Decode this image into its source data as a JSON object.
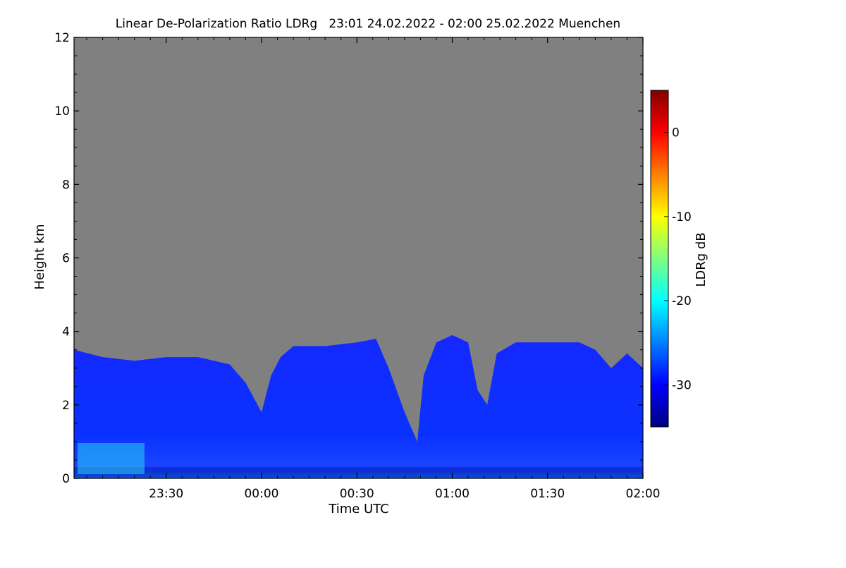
{
  "chart_data": {
    "type": "heatmap",
    "title": "Linear De-Polarization Ratio LDRg   23:01 24.02.2022 - 02:00 25.02.2022 Muenchen",
    "xlabel": "Time UTC",
    "ylabel": "Height km",
    "x_range": [
      "23:01",
      "02:00"
    ],
    "x_ticks": [
      "23:30",
      "00:00",
      "00:30",
      "01:00",
      "01:30",
      "02:00"
    ],
    "ylim": [
      0,
      12
    ],
    "y_ticks": [
      0,
      2,
      4,
      6,
      8,
      10,
      12
    ],
    "colorbar": {
      "label": "LDRg dB",
      "range": [
        -35,
        5
      ],
      "ticks": [
        0,
        -10,
        -20,
        -30
      ],
      "colormap": "jet"
    },
    "no_data_color": "#808080",
    "signal_top_km": [
      {
        "time": "23:01",
        "top": 3.5
      },
      {
        "time": "23:10",
        "top": 3.3
      },
      {
        "time": "23:20",
        "top": 3.2
      },
      {
        "time": "23:30",
        "top": 3.3
      },
      {
        "time": "23:40",
        "top": 3.3
      },
      {
        "time": "23:45",
        "top": 3.2
      },
      {
        "time": "23:50",
        "top": 3.1
      },
      {
        "time": "23:55",
        "top": 2.6
      },
      {
        "time": "00:00",
        "top": 1.8
      },
      {
        "time": "00:03",
        "top": 2.8
      },
      {
        "time": "00:06",
        "top": 3.3
      },
      {
        "time": "00:10",
        "top": 3.6
      },
      {
        "time": "00:20",
        "top": 3.6
      },
      {
        "time": "00:30",
        "top": 3.7
      },
      {
        "time": "00:36",
        "top": 3.8
      },
      {
        "time": "00:40",
        "top": 3.0
      },
      {
        "time": "00:45",
        "top": 1.8
      },
      {
        "time": "00:49",
        "top": 1.0
      },
      {
        "time": "00:51",
        "top": 2.8
      },
      {
        "time": "00:55",
        "top": 3.7
      },
      {
        "time": "01:00",
        "top": 3.9
      },
      {
        "time": "01:05",
        "top": 3.7
      },
      {
        "time": "01:08",
        "top": 2.4
      },
      {
        "time": "01:11",
        "top": 2.0
      },
      {
        "time": "01:14",
        "top": 3.4
      },
      {
        "time": "01:20",
        "top": 3.7
      },
      {
        "time": "01:30",
        "top": 3.7
      },
      {
        "time": "01:40",
        "top": 3.7
      },
      {
        "time": "01:45",
        "top": 3.5
      },
      {
        "time": "01:50",
        "top": 3.0
      },
      {
        "time": "01:55",
        "top": 3.4
      },
      {
        "time": "02:00",
        "top": 3.0
      }
    ]
  }
}
